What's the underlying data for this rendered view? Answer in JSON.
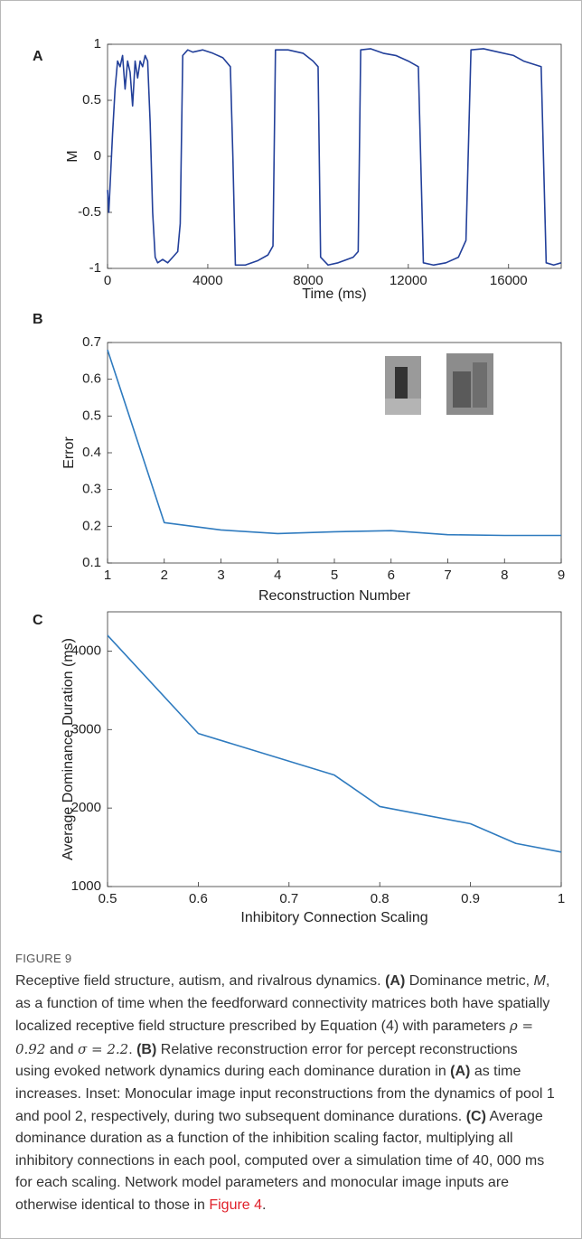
{
  "chart_data": [
    {
      "type": "line",
      "panel": "A",
      "xlabel": "Time (ms)",
      "ylabel": "M",
      "color": "#23409a",
      "x": [
        0,
        50,
        200,
        300,
        400,
        500,
        600,
        700,
        800,
        900,
        1000,
        1100,
        1200,
        1300,
        1400,
        1500,
        1600,
        1700,
        1800,
        1900,
        2000,
        2200,
        2400,
        2600,
        2800,
        2900,
        3000,
        3200,
        3400,
        3800,
        4200,
        4600,
        4900,
        5000,
        5100,
        5500,
        6000,
        6400,
        6600,
        6700,
        7200,
        7800,
        8200,
        8400,
        8500,
        8800,
        9200,
        9800,
        10000,
        10100,
        10500,
        11000,
        11500,
        12000,
        12400,
        12600,
        13000,
        13500,
        14000,
        14300,
        14500,
        15000,
        15600,
        16200,
        16600,
        17300,
        17500,
        17800,
        18100
      ],
      "values": [
        -0.3,
        -0.5,
        0.2,
        0.6,
        0.85,
        0.8,
        0.9,
        0.6,
        0.85,
        0.75,
        0.45,
        0.85,
        0.7,
        0.85,
        0.8,
        0.9,
        0.85,
        0.3,
        -0.5,
        -0.9,
        -0.95,
        -0.92,
        -0.95,
        -0.9,
        -0.85,
        -0.6,
        0.9,
        0.95,
        0.93,
        0.95,
        0.92,
        0.88,
        0.8,
        0,
        -0.97,
        -0.97,
        -0.93,
        -0.88,
        -0.8,
        0.95,
        0.95,
        0.92,
        0.85,
        0.8,
        -0.9,
        -0.97,
        -0.95,
        -0.9,
        -0.85,
        0.95,
        0.96,
        0.92,
        0.9,
        0.85,
        0.8,
        -0.95,
        -0.97,
        -0.95,
        -0.9,
        -0.75,
        0.95,
        0.96,
        0.93,
        0.9,
        0.85,
        0.8,
        -0.95,
        -0.97,
        -0.95
      ],
      "xlim": [
        0,
        18100
      ],
      "ylim": [
        -1,
        1
      ],
      "xticks": [
        0,
        4000,
        8000,
        12000,
        16000
      ],
      "yticks": [
        -1,
        -0.5,
        0,
        0.5,
        1
      ]
    },
    {
      "type": "line",
      "panel": "B",
      "xlabel": "Reconstruction Number",
      "ylabel": "Error",
      "color": "#2f7bbf",
      "x": [
        1,
        2,
        3,
        4,
        5,
        6,
        7,
        8,
        9
      ],
      "values": [
        0.68,
        0.21,
        0.19,
        0.18,
        0.185,
        0.188,
        0.177,
        0.175,
        0.175
      ],
      "xlim": [
        1,
        9
      ],
      "ylim": [
        0.1,
        0.7
      ],
      "xticks": [
        1,
        2,
        3,
        4,
        5,
        6,
        7,
        8,
        9
      ],
      "yticks": [
        0.1,
        0.2,
        0.3,
        0.4,
        0.5,
        0.6,
        0.7
      ]
    },
    {
      "type": "line",
      "panel": "C",
      "xlabel": "Inhibitory Connection Scaling",
      "ylabel": "Average Dominance Duration (ms)",
      "color": "#2f7bbf",
      "x": [
        0.5,
        0.6,
        0.75,
        0.8,
        0.9,
        0.95,
        1
      ],
      "values": [
        4200,
        2950,
        2420,
        2020,
        1800,
        1550,
        1440
      ],
      "xlim": [
        0.5,
        1
      ],
      "ylim": [
        1000,
        4500
      ],
      "xticks": [
        0.5,
        0.6,
        0.7,
        0.8,
        0.9,
        1
      ],
      "yticks": [
        1000,
        2000,
        3000,
        4000
      ]
    }
  ],
  "caption": {
    "label": "FIGURE 9",
    "segments": [
      {
        "text": "Receptive field structure, autism, and rivalrous dynamics. ",
        "style": "normal"
      },
      {
        "text": "(A)",
        "style": "bold"
      },
      {
        "text": " Dominance metric, ",
        "style": "normal"
      },
      {
        "text": "M",
        "style": "italic"
      },
      {
        "text": ", as a function of time when the feedforward connectivity matrices both have spatially localized receptive field structure prescribed by Equation (4) with parameters ",
        "style": "normal"
      },
      {
        "text": "ρ = 0.92",
        "style": "math"
      },
      {
        "text": " and ",
        "style": "normal"
      },
      {
        "text": "σ = 2.2",
        "style": "math"
      },
      {
        "text": ". ",
        "style": "normal"
      },
      {
        "text": "(B)",
        "style": "bold"
      },
      {
        "text": " Relative reconstruction error for percept reconstructions using evoked network dynamics during each dominance duration in ",
        "style": "normal"
      },
      {
        "text": "(A)",
        "style": "bold"
      },
      {
        "text": " as time increases. Inset: Monocular image input reconstructions from the dynamics of pool 1 and pool 2, respectively, during two subsequent dominance durations. ",
        "style": "normal"
      },
      {
        "text": "(C)",
        "style": "bold"
      },
      {
        "text": " Average dominance duration as a function of the inhibition scaling factor, multiplying all inhibitory connections in each pool, computed over a simulation time of 40, 000 ms for each scaling. Network model parameters and monocular image inputs are otherwise identical to those in ",
        "style": "normal"
      },
      {
        "text": "Figure 4",
        "style": "link"
      },
      {
        "text": ".",
        "style": "normal"
      }
    ]
  }
}
